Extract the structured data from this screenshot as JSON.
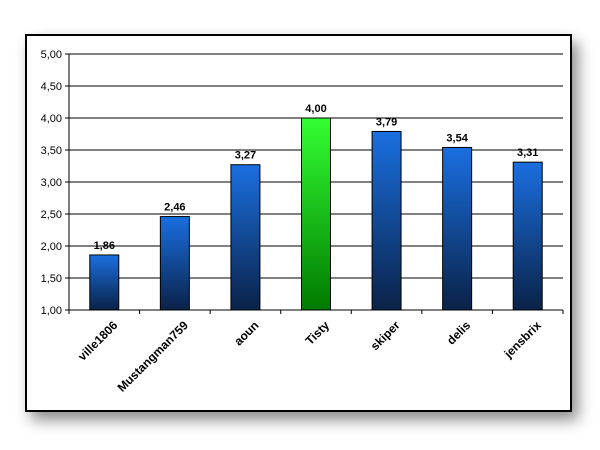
{
  "chart_data": {
    "type": "bar",
    "categories": [
      "ville1806",
      "Mustangman759",
      "aoun",
      "Tisty",
      "skiper",
      "delis",
      "jensbrix"
    ],
    "values": [
      1.86,
      2.46,
      3.27,
      4.0,
      3.79,
      3.54,
      3.31
    ],
    "value_labels": [
      "1,86",
      "2,46",
      "3,27",
      "4,00",
      "3,79",
      "3,54",
      "3,31"
    ],
    "ylim": [
      1.0,
      5.0
    ],
    "yticks": [
      1.0,
      1.5,
      2.0,
      2.5,
      3.0,
      3.5,
      4.0,
      4.5,
      5.0
    ],
    "ytick_labels": [
      "1,00",
      "1,50",
      "2,00",
      "2,50",
      "3,00",
      "3,50",
      "4,00",
      "4,50",
      "5,00"
    ],
    "grid": true,
    "highlight_index": 3,
    "colors": {
      "bar_top": "#1a6fe0",
      "bar_bottom": "#0a2248",
      "highlight_top": "#33ff33",
      "highlight_bottom": "#007a00"
    }
  }
}
